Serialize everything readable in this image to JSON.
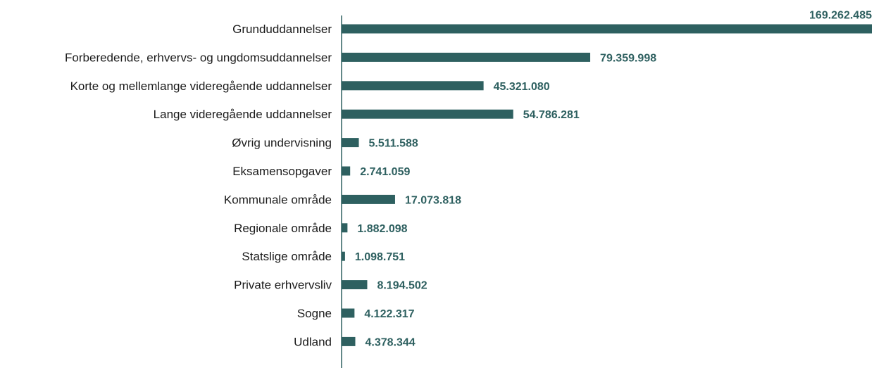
{
  "chart_data": {
    "type": "bar",
    "orientation": "horizontal",
    "categories": [
      "Grunduddannelser",
      "Forberedende, erhvervs- og ungdomsuddannelser",
      "Korte og mellemlange videregående uddannelser",
      "Lange videregående uddannelser",
      "Øvrig undervisning",
      "Eksamensopgaver",
      "Kommunale område",
      "Regionale område",
      "Statslige område",
      "Private erhvervsliv",
      "Sogne",
      "Udland"
    ],
    "values": [
      169262485,
      79359998,
      45321080,
      54786281,
      5511588,
      2741059,
      17073818,
      1882098,
      1098751,
      8194502,
      4122317,
      4378344
    ],
    "value_labels": [
      "169.262.485",
      "79.359.998",
      "45.321.080",
      "54.786.281",
      "5.511.588",
      "2.741.059",
      "17.073.818",
      "1.882.098",
      "1.098.751",
      "8.194.502",
      "4.122.317",
      "4.378.344"
    ],
    "title": "",
    "xlabel": "",
    "ylabel": "",
    "xlim": [
      0,
      169262485
    ],
    "grid": false,
    "legend": "none",
    "bar_color": "#2e6060",
    "label_color": "#2e6060"
  }
}
